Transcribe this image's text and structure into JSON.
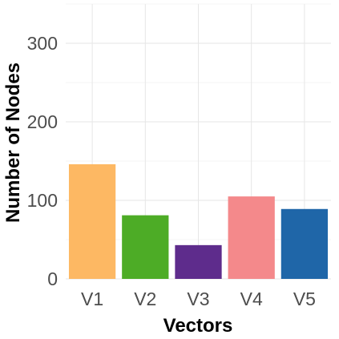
{
  "chart_data": {
    "type": "bar",
    "title": "",
    "xlabel": "Vectors",
    "ylabel": "Number of Nodes",
    "categories": [
      "V1",
      "V2",
      "V3",
      "V4",
      "V5"
    ],
    "values": [
      146,
      81,
      43,
      105,
      89
    ],
    "colors": [
      "#FDB863",
      "#4DAC26",
      "#5E2C8C",
      "#F4898B",
      "#1F66A8"
    ],
    "ylim": [
      0,
      350
    ],
    "yticks": [
      0,
      100,
      200,
      300
    ],
    "grid": true,
    "legend": "none"
  }
}
